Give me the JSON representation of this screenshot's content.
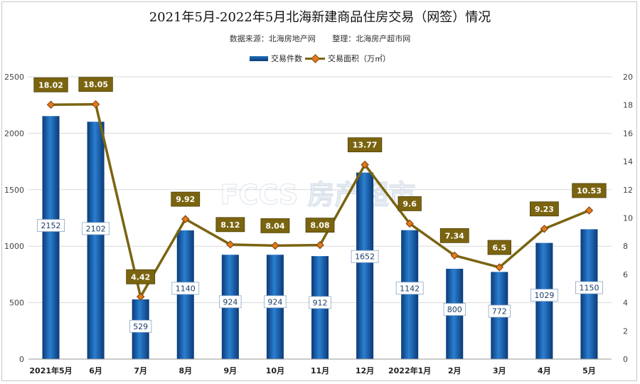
{
  "title": "2021年5月-2022年5月北海新建商品住房交易（网签）情况",
  "subtitle": {
    "source": "数据来源：北海房地产网",
    "editor": "整理：北海房产超市网"
  },
  "legend": {
    "bar_label": "交易件数",
    "line_label": "交易面积（万㎡）"
  },
  "watermark": "FCCS 房产超市",
  "colors": {
    "bar_top": "#2b7fd0",
    "bar_bottom": "#0a3a78",
    "line": "#7a6410",
    "marker": "#e07a1e",
    "label_bg": "#7a6410",
    "grid": "#d9d9d9"
  },
  "chart_data": {
    "type": "bar",
    "categories": [
      "2021年5月",
      "6月",
      "7月",
      "8月",
      "9月",
      "10月",
      "11月",
      "12月",
      "2022年1月",
      "2月",
      "3月",
      "4月",
      "5月"
    ],
    "series": [
      {
        "name": "交易件数",
        "type": "bar",
        "axis": "left",
        "values": [
          2152,
          2102,
          529,
          1140,
          924,
          924,
          912,
          1652,
          1142,
          800,
          772,
          1029,
          1150
        ]
      },
      {
        "name": "交易面积（万㎡）",
        "type": "line",
        "axis": "right",
        "values": [
          18.02,
          18.05,
          4.42,
          9.92,
          8.12,
          8.04,
          8.08,
          13.77,
          9.6,
          7.34,
          6.5,
          9.23,
          10.53
        ]
      }
    ],
    "y_left": {
      "min": 0,
      "max": 2500,
      "ticks": [
        0,
        500,
        1000,
        1500,
        2000,
        2500
      ]
    },
    "y_right": {
      "min": 0,
      "max": 20,
      "ticks": [
        0,
        2,
        4,
        6,
        8,
        10,
        12,
        14,
        16,
        18,
        20
      ]
    },
    "grid": true,
    "legend_position": "top"
  }
}
